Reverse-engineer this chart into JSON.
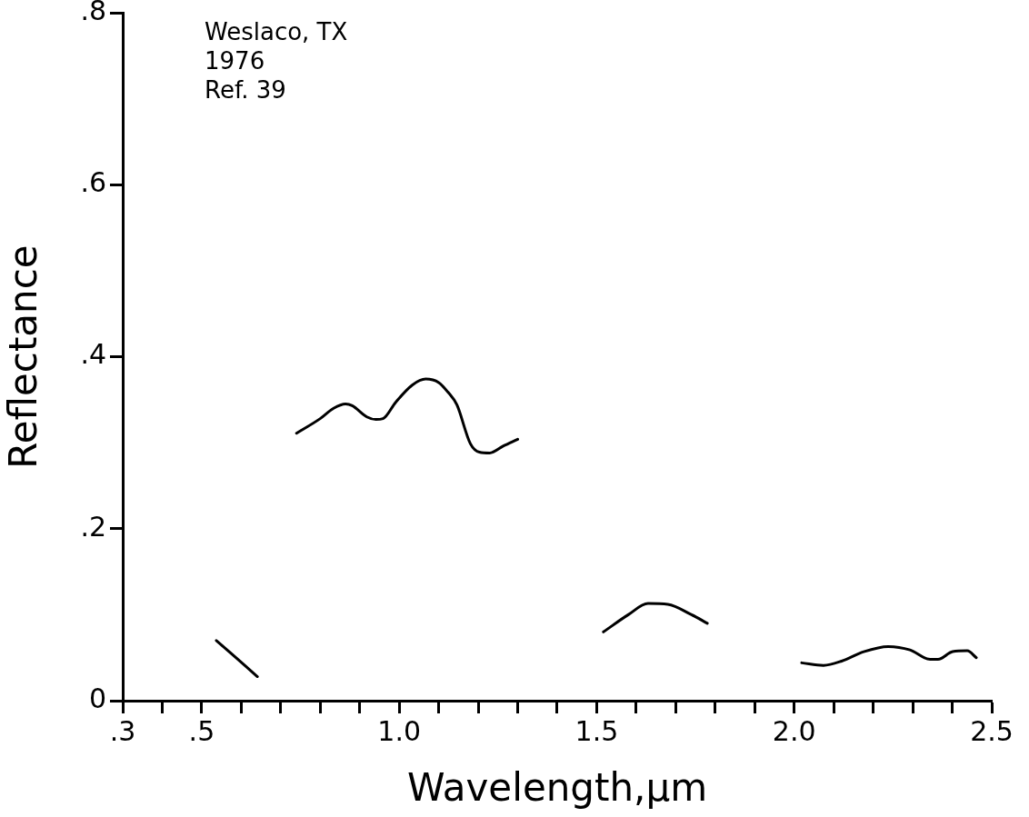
{
  "chart_data": {
    "type": "line",
    "xlabel": "Wavelength,μm",
    "ylabel": "Reflectance",
    "annotations": [
      "Weslaco, TX",
      "1976",
      "Ref. 39"
    ],
    "x": [
      0.537,
      0.641,
      null,
      0.74,
      0.8,
      0.834,
      0.864,
      0.881,
      0.918,
      0.941,
      0.959,
      0.991,
      1.033,
      1.067,
      1.1,
      1.123,
      1.146,
      1.18,
      1.203,
      1.229,
      1.263,
      1.3,
      null,
      1.517,
      1.58,
      1.63,
      1.68,
      1.74,
      1.78,
      null,
      2.019,
      2.074,
      2.12,
      2.176,
      2.238,
      2.293,
      2.344,
      2.364,
      2.401,
      2.438,
      2.461
    ],
    "series": [
      {
        "color": "#000000",
        "values": [
          0.07,
          0.028,
          null,
          0.311,
          0.328,
          0.34,
          0.345,
          0.343,
          0.33,
          0.327,
          0.328,
          0.347,
          0.367,
          0.374,
          0.37,
          0.359,
          0.344,
          0.299,
          0.289,
          0.288,
          0.296,
          0.304,
          null,
          0.08,
          0.1,
          0.113,
          0.112,
          0.1,
          0.09,
          null,
          0.044,
          0.041,
          0.046,
          0.057,
          0.063,
          0.059,
          0.048,
          0.048,
          0.057,
          0.058,
          0.05
        ]
      }
    ],
    "xlim": [
      0.3,
      2.5
    ],
    "xticks": [
      {
        "value": 0.3,
        "label": ".3"
      },
      {
        "value": 0.4,
        "label": null
      },
      {
        "value": 0.5,
        "label": ".5"
      },
      {
        "value": 0.6,
        "label": null
      },
      {
        "value": 0.7,
        "label": null
      },
      {
        "value": 0.8,
        "label": null
      },
      {
        "value": 0.9,
        "label": null
      },
      {
        "value": 1.0,
        "label": "1.0"
      },
      {
        "value": 1.1,
        "label": null
      },
      {
        "value": 1.2,
        "label": null
      },
      {
        "value": 1.3,
        "label": null
      },
      {
        "value": 1.4,
        "label": null
      },
      {
        "value": 1.5,
        "label": "1.5"
      },
      {
        "value": 1.6,
        "label": null
      },
      {
        "value": 1.7,
        "label": null
      },
      {
        "value": 1.8,
        "label": null
      },
      {
        "value": 1.9,
        "label": null
      },
      {
        "value": 2.0,
        "label": "2.0"
      },
      {
        "value": 2.1,
        "label": null
      },
      {
        "value": 2.2,
        "label": null
      },
      {
        "value": 2.3,
        "label": null
      },
      {
        "value": 2.4,
        "label": null
      },
      {
        "value": 2.5,
        "label": "2.5"
      }
    ],
    "ylim": [
      0,
      0.8
    ],
    "yticks": [
      {
        "value": 0,
        "label": "0"
      },
      {
        "value": 0.2,
        "label": ".2"
      },
      {
        "value": 0.4,
        "label": ".4"
      },
      {
        "value": 0.6,
        "label": ".6"
      },
      {
        "value": 0.8,
        "label": ".8"
      }
    ],
    "grid": false,
    "legend": false,
    "marker": "none",
    "line_style": "solid"
  }
}
